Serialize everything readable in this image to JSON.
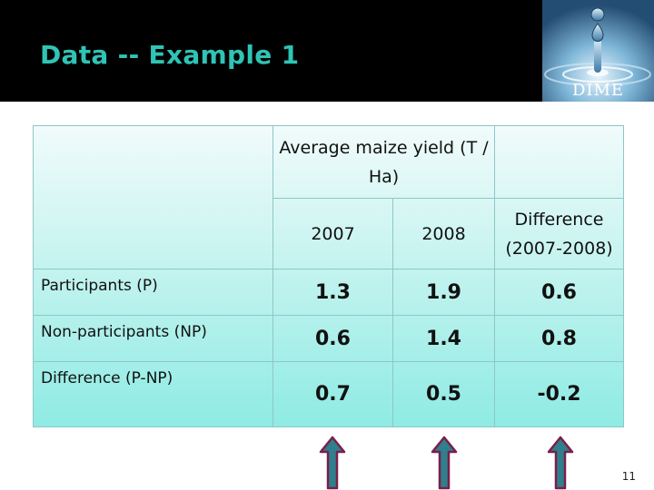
{
  "slide": {
    "title": "Data -- Example 1",
    "logo_text": "DIME",
    "page_number": "11"
  },
  "table": {
    "group_header": "Average maize yield (T / Ha)",
    "columns": [
      "2007",
      "2008",
      "Difference (2007-2008)"
    ],
    "rows": [
      {
        "label": "Participants (P)",
        "values": [
          "1.3",
          "1.9",
          "0.6"
        ]
      },
      {
        "label": "Non-participants (NP)",
        "values": [
          "0.6",
          "1.4",
          "0.8"
        ]
      },
      {
        "label": "Difference (P-NP)",
        "values": [
          "0.7",
          "0.5",
          "-0.2"
        ]
      }
    ]
  },
  "colors": {
    "title": "#2ec4b6",
    "header_background": "#000000",
    "table_fill": "#a8efe9",
    "arrow_fill": "#2f7f8c",
    "arrow_outline": "#7a1f4a"
  },
  "arrows": [
    "up-arrow-icon",
    "up-arrow-icon",
    "up-arrow-icon"
  ]
}
